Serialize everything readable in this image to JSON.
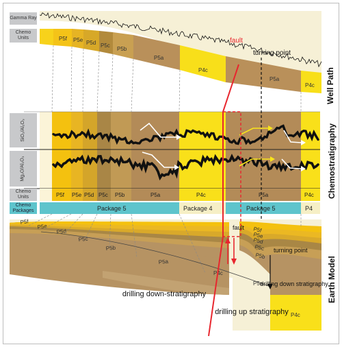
{
  "row_labels": {
    "gamma_ray": "Gamma Ray",
    "chemo_units_top": "Chemo Units",
    "chemo_units_mid": "Chemo Units",
    "chemo_packages": "Chemo Packages",
    "si_al": "SiO₂/Al₂O₃",
    "mg_al": "Mg₂O/Al₂O₃"
  },
  "section_titles": {
    "well_path": "Well Path",
    "chemostratigraphy": "Chemostratigraphy",
    "earth_model": "Earth Model"
  },
  "well_units": [
    "P5f",
    "P5e",
    "P5d",
    "P5c",
    "P5b",
    "P5a",
    "P4c",
    "P5a",
    "P4c"
  ],
  "chemo_units": [
    "P5f",
    "P5e",
    "P5d",
    "P5c",
    "P5b",
    "P5a",
    "P4c",
    "P5a",
    "P4c"
  ],
  "packages": [
    "Package 5",
    "Package 4",
    "Package 5",
    "P4"
  ],
  "annotations": {
    "fault_top": "fault",
    "turning_point_top": "turning point",
    "fault_model": "fault",
    "turning_point_model": "turning point",
    "drilling_down": "drilling down-stratigraphy",
    "drilling_down_right": "drilling down stratigraphy",
    "drilling_up": "drilling up stratigraphy"
  },
  "model_units_left": [
    "P5f",
    "P5e",
    "P5d",
    "P5c",
    "P5b",
    "P5a",
    "P4c"
  ],
  "model_units_right": [
    "P5f",
    "P5e",
    "P5d",
    "P5c",
    "P5b",
    "P5a",
    "P4c"
  ],
  "colors": {
    "fault": "#e8262e",
    "package_bar": "#5ec4cc",
    "yellow": "#f7d21b",
    "dark_gold": "#c79a2b",
    "tan": "#b58e55"
  }
}
